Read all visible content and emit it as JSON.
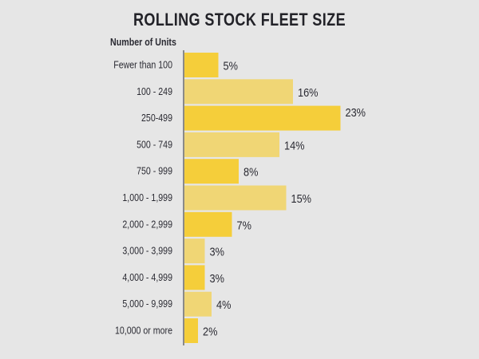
{
  "chart_data": {
    "type": "bar",
    "orientation": "horizontal",
    "title": "ROLLING STOCK FLEET SIZE",
    "ylabel": "Number of Units",
    "xlabel": "",
    "categories": [
      "Fewer than 100",
      "100 - 249",
      "250-499",
      "500 - 749",
      "750 - 999",
      "1,000 - 1,999",
      "2,000 - 2,999",
      "3,000 - 3,999",
      "4,000 - 4,999",
      "5,000 - 9,999",
      "10,000 or more"
    ],
    "values": [
      5,
      16,
      23,
      14,
      8,
      15,
      7,
      3,
      3,
      4,
      2
    ],
    "value_labels": [
      "5%",
      "16%",
      "23%",
      "14%",
      "8%",
      "15%",
      "7%",
      "3%",
      "3%",
      "4%",
      "2%"
    ],
    "unit": "%",
    "xlim": [
      0,
      25
    ],
    "grid": false,
    "colors": {
      "primary": "#F5CE3A",
      "alternate": "#F0D675",
      "axis": "#8a8a8a",
      "background": "#E6E6E6"
    }
  }
}
